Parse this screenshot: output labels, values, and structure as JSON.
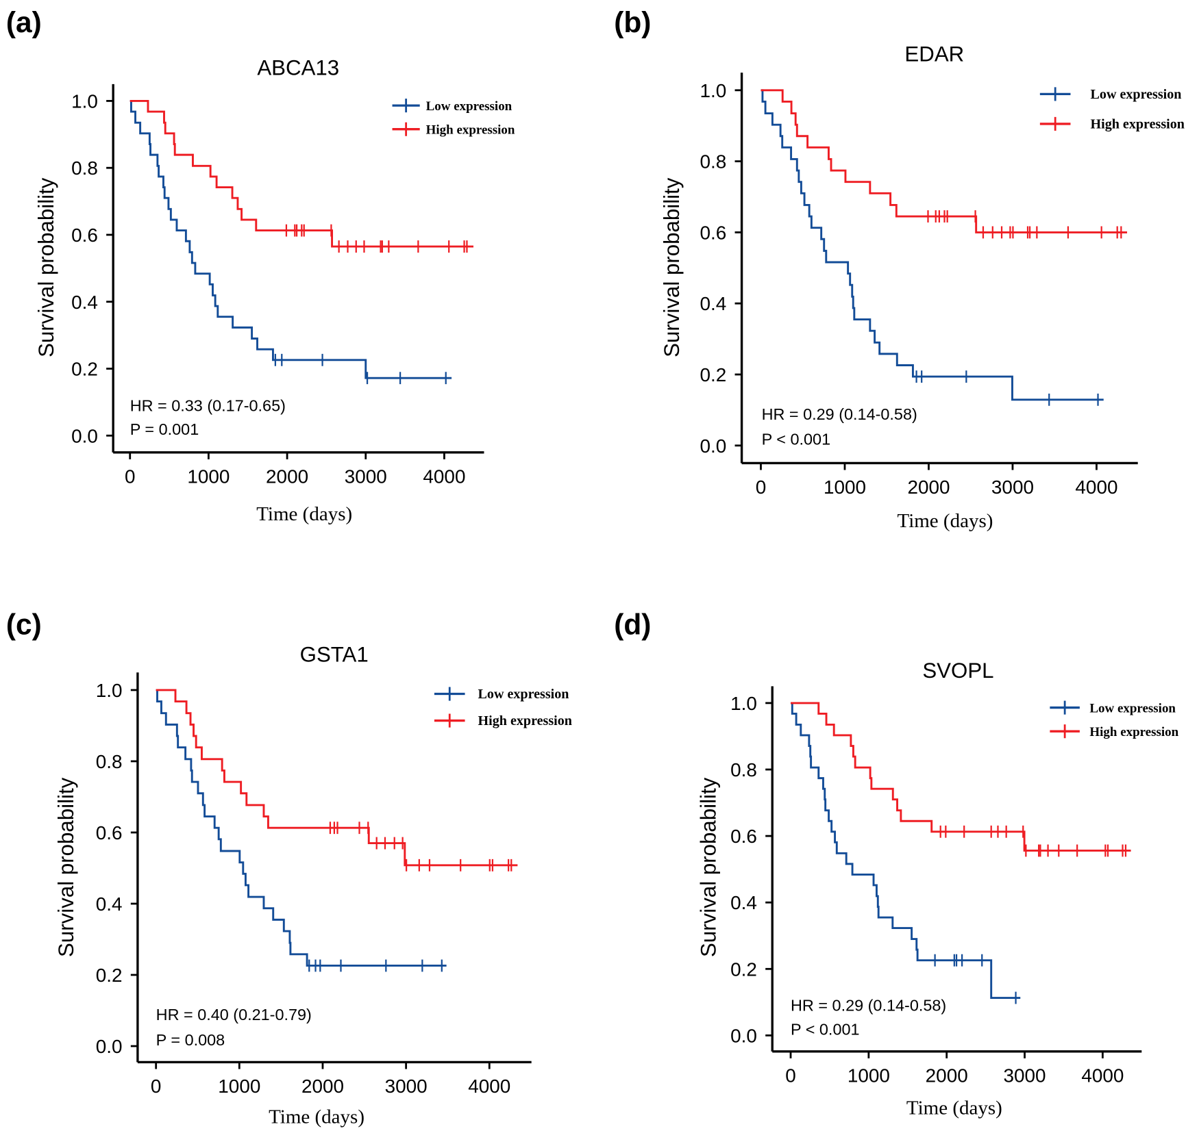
{
  "colors": {
    "low": "#134c97",
    "high": "#ee1d23"
  },
  "chart_data": [
    {
      "type": "line",
      "panel_label": "(a)",
      "title": "ABCA13",
      "xlabel": "Time (days)",
      "ylabel": "Survival probability",
      "xlim": [
        0,
        4400
      ],
      "ylim": [
        0,
        1
      ],
      "xticks": [
        "0",
        "1000",
        "2000",
        "3000",
        "4000"
      ],
      "yticks": [
        "0.0",
        "0.2",
        "0.4",
        "0.6",
        "0.8",
        "1.0"
      ],
      "hr": "HR = 0.33 (0.17-0.65)",
      "p": "P = 0.001",
      "legend": "top-right",
      "series": [
        {
          "name": "Low expression",
          "color_key": "low",
          "events": [
            [
              15,
              0.968
            ],
            [
              68,
              0.935
            ],
            [
              130,
              0.903
            ],
            [
              250,
              0.871
            ],
            [
              260,
              0.839
            ],
            [
              350,
              0.806
            ],
            [
              365,
              0.774
            ],
            [
              425,
              0.742
            ],
            [
              440,
              0.71
            ],
            [
              490,
              0.677
            ],
            [
              520,
              0.645
            ],
            [
              595,
              0.613
            ],
            [
              712,
              0.581
            ],
            [
              760,
              0.548
            ],
            [
              790,
              0.516
            ],
            [
              830,
              0.484
            ],
            [
              1015,
              0.452
            ],
            [
              1053,
              0.419
            ],
            [
              1085,
              0.387
            ],
            [
              1117,
              0.355
            ],
            [
              1307,
              0.323
            ],
            [
              1551,
              0.29
            ],
            [
              1620,
              0.258
            ],
            [
              1820,
              0.226
            ],
            [
              3000,
              0.172
            ]
          ],
          "censored": [
            1850,
            1932,
            2449,
            3020,
            3439,
            4020
          ],
          "end": 4093
        },
        {
          "name": "High expression",
          "color_key": "high",
          "events": [
            [
              229,
              0.968
            ],
            [
              434,
              0.935
            ],
            [
              449,
              0.903
            ],
            [
              561,
              0.871
            ],
            [
              571,
              0.839
            ],
            [
              800,
              0.806
            ],
            [
              1024,
              0.774
            ],
            [
              1102,
              0.742
            ],
            [
              1302,
              0.71
            ],
            [
              1371,
              0.677
            ],
            [
              1420,
              0.645
            ],
            [
              1605,
              0.613
            ],
            [
              2571,
              0.565
            ]
          ],
          "censored": [
            1990,
            2098,
            2122,
            2185,
            2215,
            2561,
            2659,
            2771,
            2878,
            2980,
            3190,
            3210,
            3293,
            3668,
            4059,
            4254,
            4288
          ],
          "end": 4371
        }
      ]
    },
    {
      "type": "line",
      "panel_label": "(b)",
      "title": "EDAR",
      "xlabel": "Time (days)",
      "ylabel": "Survival probability",
      "xlim": [
        0,
        4400
      ],
      "ylim": [
        0,
        1
      ],
      "xticks": [
        "0",
        "1000",
        "2000",
        "3000",
        "4000"
      ],
      "yticks": [
        "0.0",
        "0.2",
        "0.4",
        "0.6",
        "0.8",
        "1.0"
      ],
      "hr": "HR = 0.29 (0.14-0.58)",
      "p": "P < 0.001",
      "legend": "top-right",
      "series": [
        {
          "name": "Low expression",
          "color_key": "low",
          "events": [
            [
              20,
              0.968
            ],
            [
              54,
              0.935
            ],
            [
              138,
              0.903
            ],
            [
              234,
              0.871
            ],
            [
              255,
              0.839
            ],
            [
              360,
              0.806
            ],
            [
              431,
              0.774
            ],
            [
              452,
              0.742
            ],
            [
              481,
              0.71
            ],
            [
              519,
              0.677
            ],
            [
              577,
              0.645
            ],
            [
              603,
              0.613
            ],
            [
              720,
              0.581
            ],
            [
              753,
              0.548
            ],
            [
              778,
              0.516
            ],
            [
              1038,
              0.484
            ],
            [
              1063,
              0.452
            ],
            [
              1088,
              0.419
            ],
            [
              1100,
              0.387
            ],
            [
              1113,
              0.355
            ],
            [
              1301,
              0.323
            ],
            [
              1356,
              0.29
            ],
            [
              1414,
              0.258
            ],
            [
              1623,
              0.226
            ],
            [
              1812,
              0.194
            ],
            [
              2996,
              0.129
            ]
          ],
          "censored": [
            1854,
            1916,
            2448,
            3435,
            4017
          ],
          "end": 4084
        },
        {
          "name": "High expression",
          "color_key": "high",
          "events": [
            [
              259,
              0.968
            ],
            [
              364,
              0.935
            ],
            [
              414,
              0.903
            ],
            [
              431,
              0.871
            ],
            [
              556,
              0.839
            ],
            [
              808,
              0.806
            ],
            [
              837,
              0.774
            ],
            [
              1008,
              0.742
            ],
            [
              1301,
              0.71
            ],
            [
              1544,
              0.677
            ],
            [
              1615,
              0.645
            ],
            [
              2565,
              0.6
            ]
          ],
          "censored": [
            1992,
            2084,
            2126,
            2188,
            2222,
            2556,
            2649,
            2762,
            2870,
            2971,
            3004,
            3180,
            3205,
            3289,
            3661,
            4059,
            4247,
            4293
          ],
          "end": 4364
        }
      ]
    },
    {
      "type": "line",
      "panel_label": "(c)",
      "title": "GSTA1",
      "xlabel": "Time (days)",
      "ylabel": "Survival probability",
      "xlim": [
        0,
        4400
      ],
      "ylim": [
        0,
        1
      ],
      "xticks": [
        "0",
        "1000",
        "2000",
        "3000",
        "4000"
      ],
      "yticks": [
        "0.0",
        "0.2",
        "0.4",
        "0.6",
        "0.8",
        "1.0"
      ],
      "hr": "HR = 0.40 (0.21-0.79)",
      "p": "P = 0.008",
      "legend": "top-right",
      "series": [
        {
          "name": "Low expression",
          "color_key": "low",
          "events": [
            [
              15,
              0.968
            ],
            [
              64,
              0.935
            ],
            [
              120,
              0.903
            ],
            [
              252,
              0.871
            ],
            [
              263,
              0.839
            ],
            [
              353,
              0.806
            ],
            [
              421,
              0.774
            ],
            [
              432,
              0.742
            ],
            [
              504,
              0.71
            ],
            [
              564,
              0.677
            ],
            [
              583,
              0.645
            ],
            [
              703,
              0.613
            ],
            [
              752,
              0.581
            ],
            [
              778,
              0.548
            ],
            [
              1004,
              0.516
            ],
            [
              1045,
              0.484
            ],
            [
              1075,
              0.452
            ],
            [
              1109,
              0.419
            ],
            [
              1293,
              0.387
            ],
            [
              1406,
              0.355
            ],
            [
              1534,
              0.323
            ],
            [
              1605,
              0.29
            ],
            [
              1613,
              0.258
            ],
            [
              1812,
              0.226
            ]
          ],
          "censored": [
            1838,
            1914,
            1970,
            2218,
            2759,
            3195,
            3429
          ],
          "end": 3485
        },
        {
          "name": "High expression",
          "color_key": "high",
          "events": [
            [
              233,
              0.968
            ],
            [
              365,
              0.935
            ],
            [
              414,
              0.903
            ],
            [
              451,
              0.871
            ],
            [
              481,
              0.839
            ],
            [
              549,
              0.806
            ],
            [
              793,
              0.774
            ],
            [
              820,
              0.742
            ],
            [
              1019,
              0.71
            ],
            [
              1086,
              0.677
            ],
            [
              1293,
              0.645
            ],
            [
              1346,
              0.613
            ],
            [
              2553,
              0.57
            ],
            [
              2985,
              0.508
            ]
          ],
          "censored": [
            2090,
            2139,
            2177,
            2440,
            2545,
            2647,
            2748,
            2861,
            2959,
            3004,
            3158,
            3282,
            3654,
            4004,
            4038,
            4229,
            4263
          ],
          "end": 4338
        }
      ]
    },
    {
      "type": "line",
      "panel_label": "(d)",
      "title": "SVOPL",
      "xlabel": "Time (days)",
      "ylabel": "Survival probability",
      "xlim": [
        0,
        4400
      ],
      "ylim": [
        0,
        1
      ],
      "xticks": [
        "0",
        "1000",
        "2000",
        "3000",
        "4000"
      ],
      "yticks": [
        "0.0",
        "0.2",
        "0.4",
        "0.6",
        "0.8",
        "1.0"
      ],
      "hr": "HR = 0.29 (0.14-0.58)",
      "p": "P < 0.001",
      "legend": "top-right",
      "series": [
        {
          "name": "Low expression",
          "color_key": "low",
          "events": [
            [
              20,
              0.968
            ],
            [
              71,
              0.935
            ],
            [
              130,
              0.903
            ],
            [
              236,
              0.871
            ],
            [
              252,
              0.839
            ],
            [
              260,
              0.806
            ],
            [
              358,
              0.774
            ],
            [
              417,
              0.742
            ],
            [
              437,
              0.71
            ],
            [
              445,
              0.677
            ],
            [
              488,
              0.645
            ],
            [
              524,
              0.613
            ],
            [
              567,
              0.581
            ],
            [
              591,
              0.548
            ],
            [
              713,
              0.516
            ],
            [
              791,
              0.484
            ],
            [
              1063,
              0.452
            ],
            [
              1102,
              0.419
            ],
            [
              1118,
              0.387
            ],
            [
              1126,
              0.355
            ],
            [
              1307,
              0.323
            ],
            [
              1551,
              0.29
            ],
            [
              1614,
              0.258
            ],
            [
              1626,
              0.226
            ],
            [
              2571,
              0.113
            ]
          ],
          "censored": [
            1850,
            2098,
            2126,
            2197,
            2453,
            2886
          ],
          "end": 2945
        },
        {
          "name": "High expression",
          "color_key": "high",
          "events": [
            [
              358,
              0.968
            ],
            [
              457,
              0.935
            ],
            [
              555,
              0.903
            ],
            [
              772,
              0.871
            ],
            [
              803,
              0.839
            ],
            [
              827,
              0.806
            ],
            [
              1020,
              0.774
            ],
            [
              1035,
              0.742
            ],
            [
              1311,
              0.71
            ],
            [
              1366,
              0.677
            ],
            [
              1413,
              0.645
            ],
            [
              1807,
              0.613
            ],
            [
              2996,
              0.556
            ]
          ],
          "censored": [
            1921,
            1988,
            2224,
            2571,
            2657,
            2764,
            2980,
            3016,
            3181,
            3201,
            3299,
            3437,
            3673,
            4035,
            4067,
            4256,
            4295
          ],
          "end": 4362
        }
      ]
    }
  ]
}
